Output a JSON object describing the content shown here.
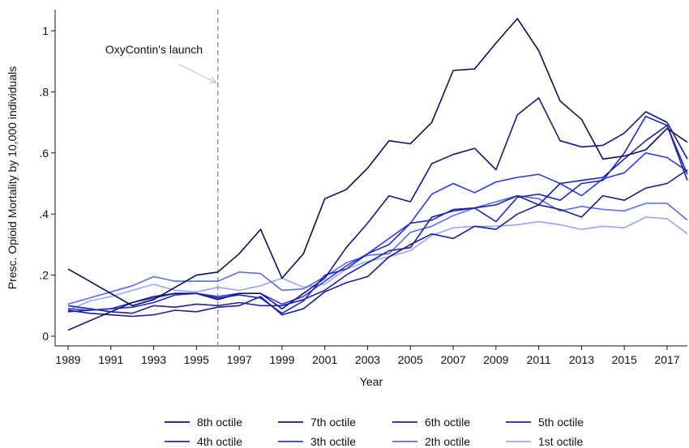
{
  "chart_data": {
    "type": "line",
    "title": "",
    "xlabel": "Year",
    "ylabel": "Presc. Opioid Mortality by 10,000 individuals",
    "xlim": [
      1989,
      2018
    ],
    "ylim": [
      0,
      1.05
    ],
    "x_ticks": [
      1989,
      1991,
      1993,
      1995,
      1997,
      1999,
      2001,
      2003,
      2005,
      2007,
      2009,
      2011,
      2013,
      2015,
      2017
    ],
    "x_tick_labels": [
      "1989",
      "1991",
      "1993",
      "1995",
      "1997",
      "1999",
      "2001",
      "2003",
      "2005",
      "2007",
      "2009",
      "2011",
      "2013",
      "2015",
      "2017"
    ],
    "y_ticks": [
      0,
      0.2,
      0.4,
      0.6,
      0.8,
      1
    ],
    "y_tick_labels": [
      "0",
      ".2",
      ".4",
      ".6",
      ".8",
      "1"
    ],
    "grid": false,
    "legend_position": "bottom",
    "annotation": {
      "text": "OxyContin's launch",
      "vline_x": 1996,
      "arrow_from": [
        1994.2,
        0.89
      ],
      "arrow_to": [
        1996,
        0.83
      ]
    },
    "x": [
      1989,
      1990,
      1991,
      1992,
      1993,
      1994,
      1995,
      1996,
      1997,
      1998,
      1999,
      2000,
      2001,
      2002,
      2003,
      2004,
      2005,
      2006,
      2007,
      2008,
      2009,
      2010,
      2011,
      2012,
      2013,
      2014,
      2015,
      2016,
      2017,
      2018
    ],
    "series": [
      {
        "name": "8th octile",
        "color": "#0d0f5a",
        "values": [
          0.22,
          0.18,
          0.14,
          0.1,
          0.12,
          0.16,
          0.2,
          0.21,
          0.27,
          0.35,
          0.19,
          0.27,
          0.45,
          0.48,
          0.55,
          0.64,
          0.63,
          0.7,
          0.87,
          0.875,
          0.96,
          1.04,
          0.935,
          0.77,
          0.71,
          0.58,
          0.59,
          0.61,
          0.68,
          0.635
        ]
      },
      {
        "name": "7th octile",
        "color": "#15187a",
        "values": [
          0.02,
          0.05,
          0.08,
          0.11,
          0.13,
          0.14,
          0.14,
          0.12,
          0.14,
          0.14,
          0.09,
          0.14,
          0.19,
          0.29,
          0.37,
          0.46,
          0.44,
          0.565,
          0.595,
          0.615,
          0.545,
          0.725,
          0.78,
          0.64,
          0.62,
          0.625,
          0.665,
          0.735,
          0.7,
          0.58
        ]
      },
      {
        "name": "6th octile",
        "color": "#1a1e8c",
        "values": [
          0.085,
          0.075,
          0.07,
          0.065,
          0.07,
          0.085,
          0.08,
          0.095,
          0.1,
          0.13,
          0.07,
          0.09,
          0.145,
          0.175,
          0.195,
          0.26,
          0.3,
          0.335,
          0.32,
          0.36,
          0.35,
          0.4,
          0.43,
          0.415,
          0.39,
          0.46,
          0.445,
          0.485,
          0.5,
          0.545
        ]
      },
      {
        "name": "5th octile",
        "color": "#1e22a0",
        "values": [
          0.1,
          0.09,
          0.08,
          0.075,
          0.1,
          0.095,
          0.105,
          0.1,
          0.11,
          0.1,
          0.1,
          0.12,
          0.15,
          0.2,
          0.24,
          0.28,
          0.29,
          0.39,
          0.41,
          0.42,
          0.43,
          0.46,
          0.43,
          0.5,
          0.51,
          0.52,
          0.58,
          0.64,
          0.69,
          0.51
        ]
      },
      {
        "name": "4th octile",
        "color": "#1e28c8",
        "values": [
          0.08,
          0.085,
          0.09,
          0.095,
          0.11,
          0.135,
          0.14,
          0.125,
          0.135,
          0.125,
          0.075,
          0.115,
          0.2,
          0.22,
          0.27,
          0.3,
          0.37,
          0.38,
          0.415,
          0.42,
          0.375,
          0.455,
          0.465,
          0.445,
          0.5,
          0.51,
          0.6,
          0.72,
          0.69,
          0.53
        ]
      },
      {
        "name": "3th octile",
        "color": "#2a3ae0",
        "values": [
          0.09,
          0.085,
          0.09,
          0.11,
          0.125,
          0.14,
          0.14,
          0.13,
          0.14,
          0.14,
          0.105,
          0.13,
          0.18,
          0.23,
          0.27,
          0.32,
          0.37,
          0.465,
          0.5,
          0.47,
          0.505,
          0.52,
          0.53,
          0.5,
          0.46,
          0.515,
          0.535,
          0.6,
          0.585,
          0.54
        ]
      },
      {
        "name": "2th octile",
        "color": "#5a6ae8",
        "values": [
          0.105,
          0.125,
          0.145,
          0.165,
          0.195,
          0.18,
          0.18,
          0.18,
          0.21,
          0.205,
          0.15,
          0.155,
          0.195,
          0.24,
          0.265,
          0.27,
          0.34,
          0.36,
          0.395,
          0.42,
          0.44,
          0.46,
          0.45,
          0.41,
          0.425,
          0.415,
          0.41,
          0.435,
          0.435,
          0.38
        ]
      },
      {
        "name": "1st octile",
        "color": "#9aa4f2",
        "values": [
          0.085,
          0.115,
          0.13,
          0.15,
          0.17,
          0.15,
          0.145,
          0.16,
          0.15,
          0.165,
          0.19,
          0.16,
          0.17,
          0.22,
          0.245,
          0.26,
          0.28,
          0.33,
          0.355,
          0.36,
          0.36,
          0.365,
          0.375,
          0.365,
          0.35,
          0.36,
          0.355,
          0.39,
          0.385,
          0.335
        ]
      }
    ]
  }
}
